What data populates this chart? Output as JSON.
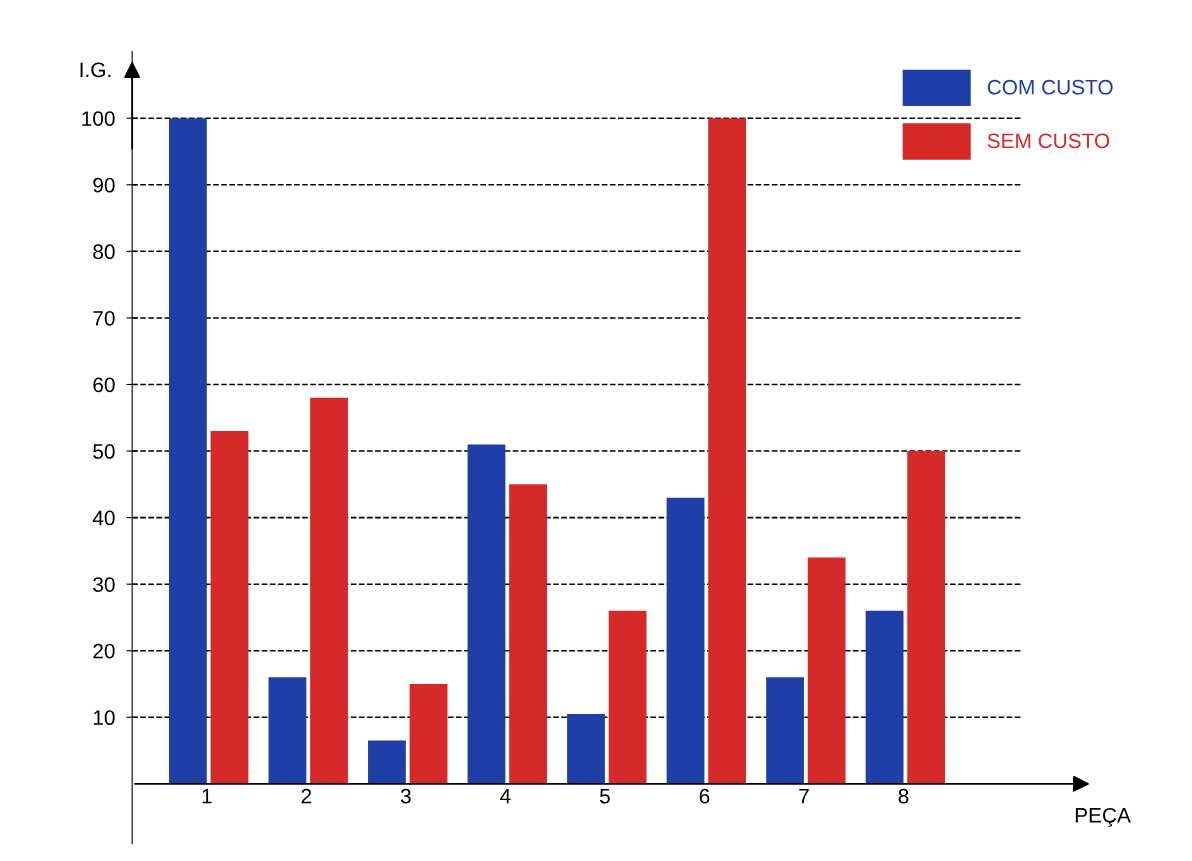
{
  "chart_data": {
    "type": "bar",
    "xlabel": "PEÇA",
    "ylabel": "I.G.",
    "categories": [
      "1",
      "2",
      "3",
      "4",
      "5",
      "6",
      "7",
      "8"
    ],
    "series": [
      {
        "name": "COM CUSTO",
        "color": "#1f3fa6",
        "values": [
          100,
          16,
          6.5,
          51,
          10.5,
          43,
          16,
          26
        ]
      },
      {
        "name": "SEM CUSTO",
        "color": "#d42a2a",
        "values": [
          53,
          58,
          15,
          45,
          26,
          100,
          34,
          50
        ]
      }
    ],
    "ylim": [
      -9,
      110
    ],
    "yticks": [
      10,
      20,
      30,
      40,
      50,
      60,
      70,
      80,
      90,
      100
    ],
    "grid": "y",
    "line_style": "dashed",
    "legend": "top right"
  }
}
